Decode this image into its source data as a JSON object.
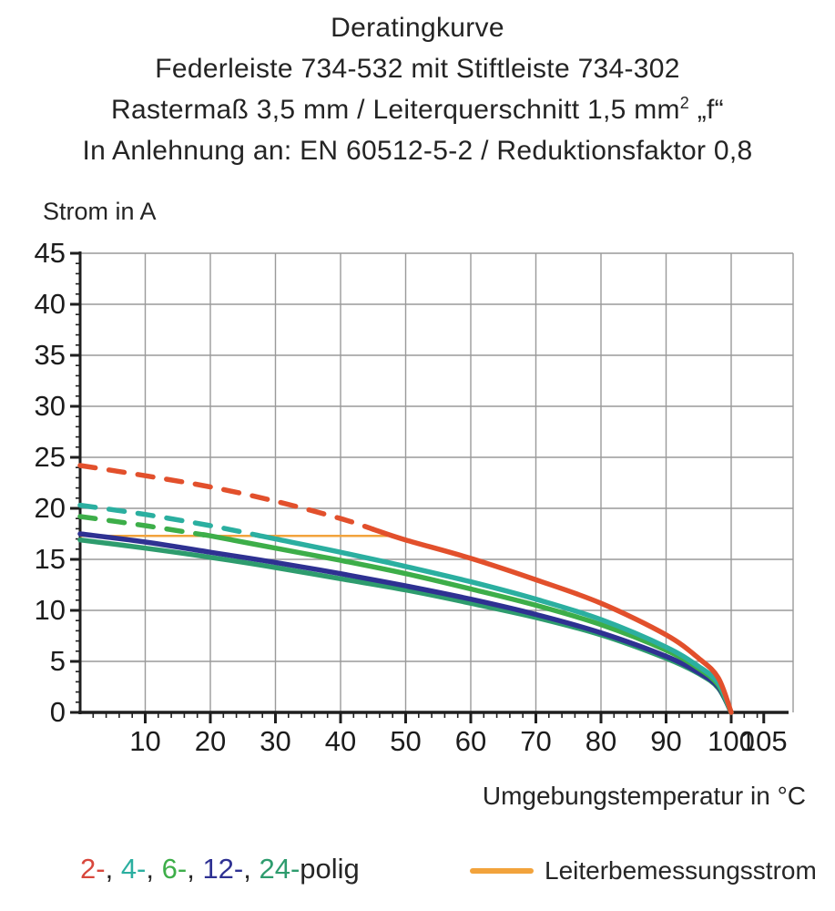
{
  "title": {
    "line1": "Deratingkurve",
    "line2": "Federleiste 734-532 mit Stiftleiste 734-302",
    "line3_pre": "Rastermaß 3,5 mm / Leiterquerschnitt 1,5 mm",
    "line3_sup": "2",
    "line3_post": " „f“",
    "line4": "In Anlehnung an: EN 60512-5-2 / Reduktionsfaktor 0,8"
  },
  "chart_data": {
    "type": "line",
    "title": "Deratingkurve",
    "xlabel": "Umgebungstemperatur in °C",
    "ylabel": "Strom in A",
    "xlim": [
      0,
      109
    ],
    "ylim": [
      0,
      45
    ],
    "x_major_ticks": [
      10,
      20,
      30,
      40,
      50,
      60,
      70,
      80,
      90,
      100,
      105
    ],
    "y_major_ticks": [
      0,
      5,
      10,
      15,
      20,
      25,
      30,
      35,
      40,
      45
    ],
    "x_minor_step": 2,
    "y_minor_step": 1,
    "grid": true,
    "legend_position": "bottom",
    "x": [
      0,
      10,
      20,
      30,
      40,
      50,
      60,
      70,
      80,
      90,
      95,
      98,
      100
    ],
    "series": [
      {
        "name": "24-polig",
        "color": "#2E9C6E",
        "dash_until": 0,
        "values": [
          16.9,
          16.1,
          15.2,
          14.2,
          13.1,
          12.0,
          10.7,
          9.3,
          7.6,
          5.3,
          3.8,
          2.4,
          0
        ]
      },
      {
        "name": "12-polig",
        "color": "#2E3192",
        "dash_until": 0,
        "values": [
          17.5,
          16.7,
          15.7,
          14.7,
          13.6,
          12.4,
          11.1,
          9.6,
          7.8,
          5.5,
          3.9,
          2.5,
          0
        ]
      },
      {
        "name": "6-polig",
        "color": "#3DAE49",
        "dash_until": 19,
        "values": [
          19.2,
          18.3,
          17.3,
          16.1,
          14.9,
          13.6,
          12.1,
          10.5,
          8.6,
          6.1,
          4.3,
          2.7,
          0
        ]
      },
      {
        "name": "4-polig",
        "color": "#2BAFA0",
        "dash_until": 27,
        "values": [
          20.3,
          19.4,
          18.3,
          17.0,
          15.7,
          14.3,
          12.8,
          11.1,
          9.1,
          6.4,
          4.5,
          2.9,
          0
        ]
      },
      {
        "name": "2-polig",
        "color": "#E2502C",
        "dash_until": 45,
        "values": [
          24.2,
          23.2,
          22.1,
          20.7,
          19.0,
          16.9,
          15.1,
          13.0,
          10.7,
          7.6,
          5.3,
          3.4,
          0
        ]
      }
    ],
    "rated_line": {
      "name": "Leiterbemessungsstrom",
      "color": "#F2A33C",
      "value": 17.3,
      "x_start": 0,
      "x_end": 48
    }
  },
  "legend": {
    "poles": [
      {
        "label": "2-",
        "color": "#D8473C"
      },
      {
        "label": "4-",
        "color": "#2BAFA0"
      },
      {
        "label": "6-",
        "color": "#3DAE49"
      },
      {
        "label": "12-",
        "color": "#2E3192"
      },
      {
        "label": "24-",
        "color": "#2E9C6E"
      }
    ],
    "separator": ", ",
    "suffix": "polig",
    "rated_label": "Leiterbemessungsstrom"
  },
  "colors": {
    "grid": "#9A9A9A",
    "axis": "#1F1F1F",
    "text": "#1C1C1C",
    "background": "#FFFFFF"
  }
}
